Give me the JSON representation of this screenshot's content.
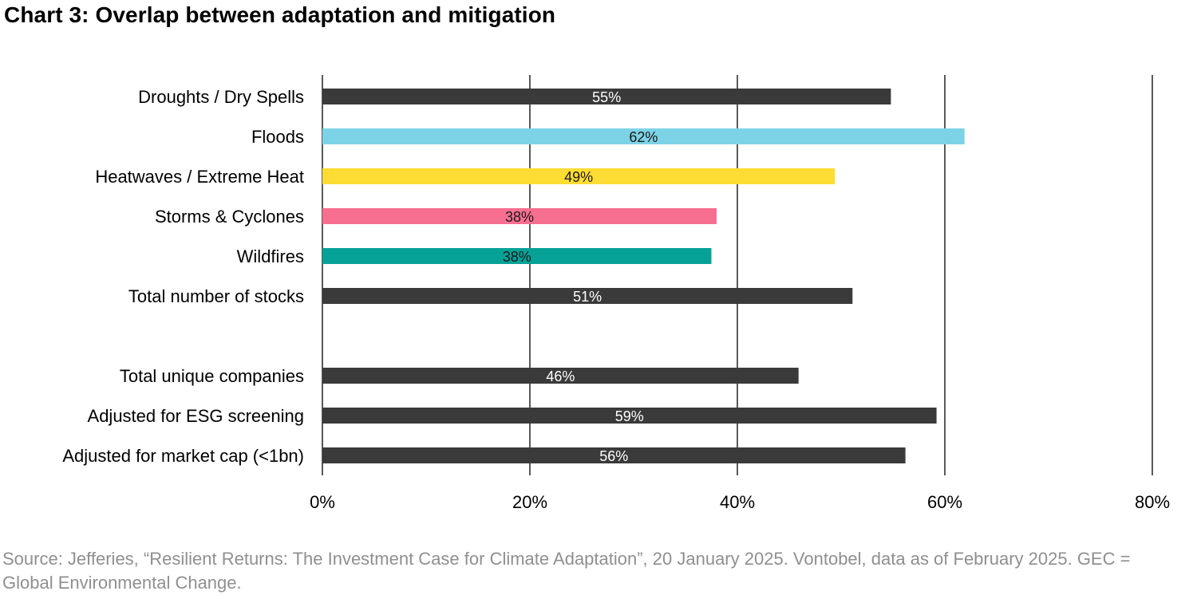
{
  "title": "Chart 3: Overlap between adaptation and mitigation",
  "source": "Source: Jefferies, “Resilient Returns: The Investment Case for Climate Adaptation”, 20 January 2025. Vontobel, data as of February 2025. GEC = Global Environmental Change.",
  "chart_data": {
    "type": "bar",
    "orientation": "horizontal",
    "title": "Chart 3: Overlap between adaptation and mitigation",
    "xlabel": "",
    "ylabel": "",
    "xlim": [
      0,
      80
    ],
    "x_ticks": [
      "0%",
      "20%",
      "40%",
      "60%",
      "80%"
    ],
    "grid": "vertical",
    "legend": "none",
    "bars": [
      {
        "category": "Droughts / Dry Spells",
        "value": 54.8,
        "label": "55%",
        "color": "#3a3a3a",
        "label_color": "#ffffff",
        "group": 0
      },
      {
        "category": "Floods",
        "value": 61.9,
        "label": "62%",
        "color": "#7dd3e6",
        "label_color": "#1a1a1a",
        "group": 0
      },
      {
        "category": "Heatwaves / Extreme Heat",
        "value": 49.4,
        "label": "49%",
        "color": "#fddc34",
        "label_color": "#1a1a1a",
        "group": 0
      },
      {
        "category": "Storms & Cyclones",
        "value": 38.0,
        "label": "38%",
        "color": "#f76f90",
        "label_color": "#1a1a1a",
        "group": 0
      },
      {
        "category": "Wildfires",
        "value": 37.5,
        "label": "38%",
        "color": "#07a297",
        "label_color": "#1a1a1a",
        "group": 0
      },
      {
        "category": "Total number of stocks",
        "value": 51.1,
        "label": "51%",
        "color": "#3a3a3a",
        "label_color": "#ffffff",
        "group": 0
      },
      {
        "category": "Total unique companies",
        "value": 45.9,
        "label": "46%",
        "color": "#3a3a3a",
        "label_color": "#ffffff",
        "group": 1
      },
      {
        "category": "Adjusted for ESG screening",
        "value": 59.2,
        "label": "59%",
        "color": "#3a3a3a",
        "label_color": "#ffffff",
        "group": 1
      },
      {
        "category": "Adjusted for market cap (<1bn)",
        "value": 56.2,
        "label": "56%",
        "color": "#3a3a3a",
        "label_color": "#ffffff",
        "group": 1
      }
    ]
  }
}
